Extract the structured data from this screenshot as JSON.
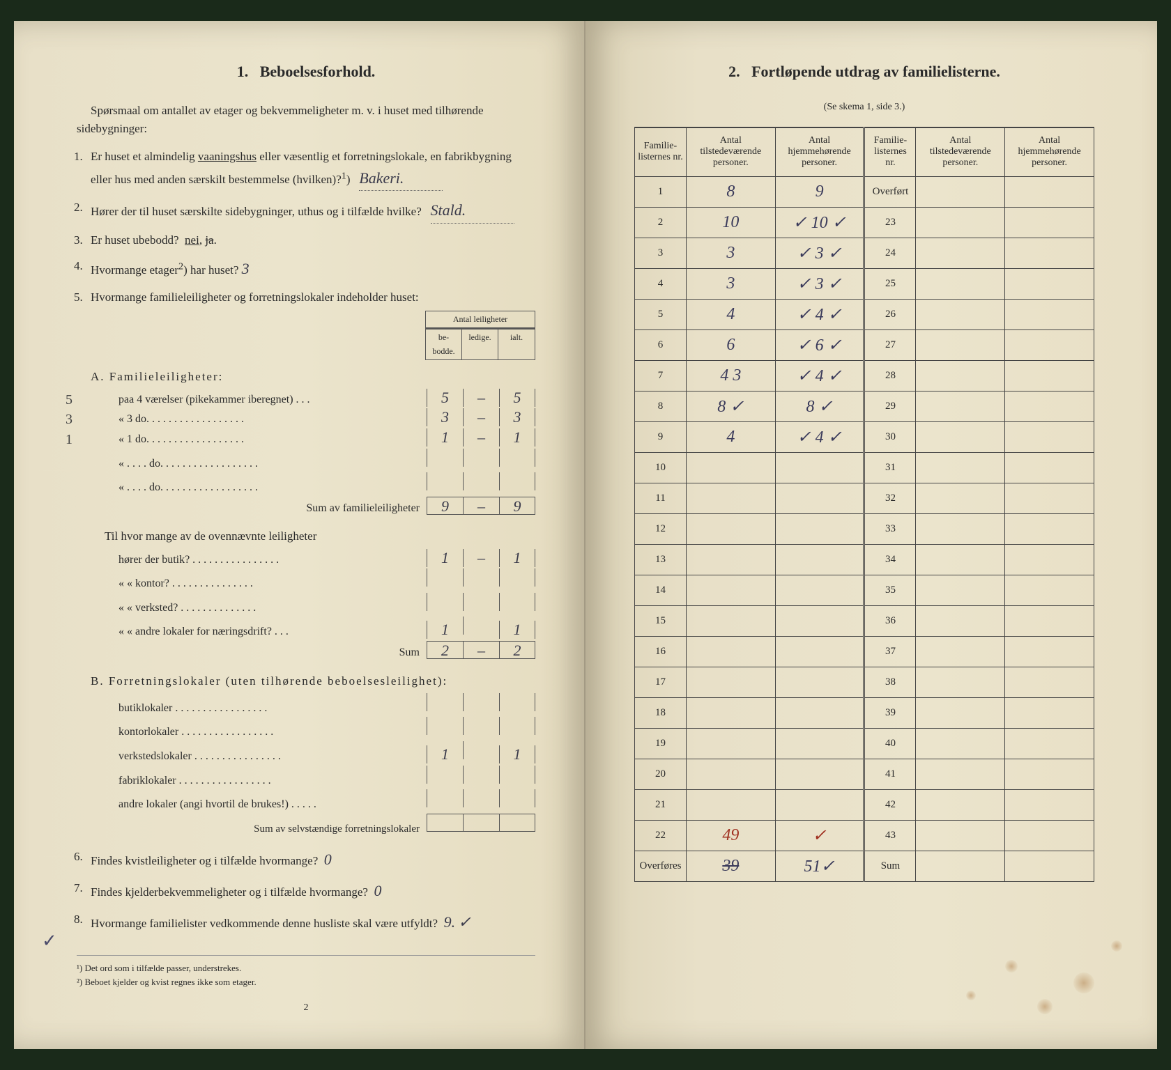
{
  "leftPage": {
    "sectionNumber": "1.",
    "sectionTitle": "Beboelsesforhold.",
    "intro": "Spørsmaal om antallet av etager og bekvemmeligheter m. v. i huset med tilhørende sidebygninger:",
    "q1": {
      "num": "1.",
      "text_a": "Er huset et almindelig ",
      "underlined": "vaaningshus",
      "text_b": " eller væsentlig et forretningslokale, en fabrikbygning eller hus med anden særskilt bestemmelse (hvilken)?",
      "sup": "1",
      "answer": "Bakeri."
    },
    "q2": {
      "num": "2.",
      "text": "Hører der til huset særskilte sidebygninger, uthus og i tilfælde hvilke?",
      "answer": "Stald."
    },
    "q3": {
      "num": "3.",
      "text": "Er huset ubebodd?",
      "answer_underline": "nei",
      "answer_strike": "ja"
    },
    "q4": {
      "num": "4.",
      "text_a": "Hvormange etager",
      "sup": "2",
      "text_b": ") har huset?",
      "answer": "3"
    },
    "q5": {
      "num": "5.",
      "text": "Hvormange familieleiligheter og forretningslokaler indeholder huset:",
      "tableHeader": {
        "top": "Antal leiligheter",
        "c1": "be-\nbodde.",
        "c2": "ledige.",
        "c3": "ialt."
      },
      "sectionA": {
        "heading": "A. Familieleiligheter:",
        "rows": [
          {
            "margin": "5",
            "label": "paa 4 værelser (pikekammer iberegnet) . . .",
            "v1": "5",
            "v2": "–",
            "v3": "5"
          },
          {
            "margin": "3",
            "label": "«   3     do.   . . . . . . . . . . . . . . . . .",
            "v1": "3",
            "v2": "–",
            "v3": "3"
          },
          {
            "margin": "1",
            "label": "«   1     do.   . . . . . . . . . . . . . . . . .",
            "v1": "1",
            "v2": "–",
            "v3": "1"
          },
          {
            "margin": "",
            "label": "«  . . . .   do.   . . . . . . . . . . . . . . . . .",
            "v1": "",
            "v2": "",
            "v3": ""
          },
          {
            "margin": "",
            "label": "«  . . . .   do.   . . . . . . . . . . . . . . . . .",
            "v1": "",
            "v2": "",
            "v3": ""
          }
        ],
        "sumLabel": "Sum av familieleiligheter",
        "sum": {
          "v1": "9",
          "v2": "–",
          "v3": "9"
        },
        "sub2Label": "Til hvor mange av de ovennævnte leiligheter",
        "sub2Rows": [
          {
            "label": "hører der butik? . . . . . . . . . . . . . . . .",
            "v1": "1",
            "v2": "–",
            "v3": "1"
          },
          {
            "label": "«       «    kontor? . . . . . . . . . . . . . . .",
            "v1": "",
            "v2": "",
            "v3": ""
          },
          {
            "label": "«       «    verksted? . . . . . . . . . . . . . .",
            "v1": "",
            "v2": "",
            "v3": ""
          },
          {
            "label": "«       «    andre lokaler for næringsdrift? . . .",
            "v1": "1",
            "v2": "",
            "v3": "1"
          }
        ],
        "sub2SumLabel": "Sum",
        "sub2Sum": {
          "v1": "2",
          "v2": "–",
          "v3": "2"
        }
      },
      "sectionB": {
        "heading": "B. Forretningslokaler (uten tilhørende beboelsesleilighet):",
        "rows": [
          {
            "label": "butiklokaler . . . . . . . . . . . . . . . . .",
            "v1": "",
            "v2": "",
            "v3": ""
          },
          {
            "label": "kontorlokaler . . . . . . . . . . . . . . . . .",
            "v1": "",
            "v2": "",
            "v3": ""
          },
          {
            "label": "verkstedslokaler . . . . . . . . . . . . . . . .",
            "v1": "1",
            "v2": "",
            "v3": "1"
          },
          {
            "label": "fabriklokaler . . . . . . . . . . . . . . . . .",
            "v1": "",
            "v2": "",
            "v3": ""
          },
          {
            "label": "andre lokaler (angi hvortil de brukes!) . . . . .",
            "v1": "",
            "v2": "",
            "v3": ""
          }
        ],
        "sumLabel": "Sum av selvstændige forretningslokaler",
        "sum": {
          "v1": "",
          "v2": "",
          "v3": ""
        }
      }
    },
    "q6": {
      "num": "6.",
      "text": "Findes kvistleiligheter og i tilfælde hvormange?",
      "answer": "0"
    },
    "q7": {
      "num": "7.",
      "text": "Findes kjelderbekvemmeligheter og i tilfælde hvormange?",
      "answer": "0"
    },
    "q8": {
      "num": "8.",
      "text": "Hvormange familielister vedkommende denne husliste skal være utfyldt?",
      "answer": "9."
    },
    "footnote1": "¹) Det ord som i tilfælde passer, understrekes.",
    "footnote2": "²) Beboet kjelder og kvist regnes ikke som etager.",
    "pageNum": "2"
  },
  "rightPage": {
    "sectionNumber": "2.",
    "sectionTitle": "Fortløpende utdrag av familielisterne.",
    "subtitle": "(Se skema 1, side 3.)",
    "headers": {
      "h1": "Familie-\nlisternes\nnr.",
      "h2": "Antal\ntilstedeværende\npersoner.",
      "h3": "Antal\nhjemmehørende\npersoner.",
      "h4": "Familie-\nlisternes\nnr.",
      "h5": "Antal\ntilstedeværende\npersoner.",
      "h6": "Antal\nhjemmehørende\npersoner."
    },
    "rows": [
      {
        "n1": "1",
        "v1": "8",
        "w1": "9",
        "n2": "Overført",
        "v2": "",
        "w2": ""
      },
      {
        "n1": "2",
        "v1": "10",
        "w1": "✓ 10 ✓",
        "n2": "23",
        "v2": "",
        "w2": ""
      },
      {
        "n1": "3",
        "v1": "3",
        "w1": "✓ 3 ✓",
        "n2": "24",
        "v2": "",
        "w2": ""
      },
      {
        "n1": "4",
        "v1": "3",
        "w1": "✓ 3 ✓",
        "n2": "25",
        "v2": "",
        "w2": ""
      },
      {
        "n1": "5",
        "v1": "4",
        "w1": "✓ 4 ✓",
        "n2": "26",
        "v2": "",
        "w2": ""
      },
      {
        "n1": "6",
        "v1": "6",
        "w1": "✓ 6 ✓",
        "n2": "27",
        "v2": "",
        "w2": ""
      },
      {
        "n1": "7",
        "v1": "4 3",
        "w1": "✓ 4 ✓",
        "n2": "28",
        "v2": "",
        "w2": ""
      },
      {
        "n1": "8",
        "v1": "8 ✓",
        "w1": "8 ✓",
        "n2": "29",
        "v2": "",
        "w2": ""
      },
      {
        "n1": "9",
        "v1": "4",
        "w1": "✓ 4 ✓",
        "n2": "30",
        "v2": "",
        "w2": ""
      },
      {
        "n1": "10",
        "v1": "",
        "w1": "",
        "n2": "31",
        "v2": "",
        "w2": ""
      },
      {
        "n1": "11",
        "v1": "",
        "w1": "",
        "n2": "32",
        "v2": "",
        "w2": ""
      },
      {
        "n1": "12",
        "v1": "",
        "w1": "",
        "n2": "33",
        "v2": "",
        "w2": ""
      },
      {
        "n1": "13",
        "v1": "",
        "w1": "",
        "n2": "34",
        "v2": "",
        "w2": ""
      },
      {
        "n1": "14",
        "v1": "",
        "w1": "",
        "n2": "35",
        "v2": "",
        "w2": ""
      },
      {
        "n1": "15",
        "v1": "",
        "w1": "",
        "n2": "36",
        "v2": "",
        "w2": ""
      },
      {
        "n1": "16",
        "v1": "",
        "w1": "",
        "n2": "37",
        "v2": "",
        "w2": ""
      },
      {
        "n1": "17",
        "v1": "",
        "w1": "",
        "n2": "38",
        "v2": "",
        "w2": ""
      },
      {
        "n1": "18",
        "v1": "",
        "w1": "",
        "n2": "39",
        "v2": "",
        "w2": ""
      },
      {
        "n1": "19",
        "v1": "",
        "w1": "",
        "n2": "40",
        "v2": "",
        "w2": ""
      },
      {
        "n1": "20",
        "v1": "",
        "w1": "",
        "n2": "41",
        "v2": "",
        "w2": ""
      },
      {
        "n1": "21",
        "v1": "",
        "w1": "",
        "n2": "42",
        "v2": "",
        "w2": ""
      },
      {
        "n1": "22",
        "v1": "49",
        "w1": "✓",
        "n2": "43",
        "v2": "",
        "w2": "",
        "red": true
      },
      {
        "n1": "Overføres",
        "v1": "39",
        "w1": "51✓",
        "n2": "Sum",
        "v2": "",
        "w2": "",
        "strike1": true
      }
    ]
  },
  "colors": {
    "paper": "#e8e0c8",
    "ink": "#2a2a2a",
    "handwriting": "#3a3a5a",
    "handwritingRed": "#a03020",
    "border": "#444444"
  }
}
